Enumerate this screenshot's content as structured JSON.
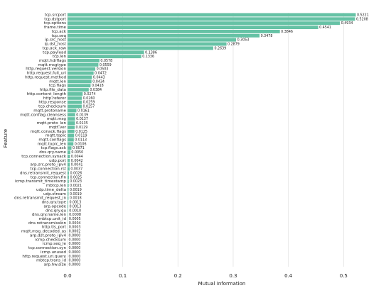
{
  "chart_data": {
    "type": "barh",
    "x_label": "Mutual Information",
    "y_label": "Feature",
    "color": "#66c2a5",
    "grid": true,
    "xlim": [
      0,
      0.573
    ],
    "xticks": [
      {
        "value": 0,
        "label": "0.0"
      },
      0.1,
      0.2,
      0.3,
      0.4,
      0.5
    ],
    "categories": [
      "tcp.srcport",
      "tcp.dstport",
      "tcp.options",
      "frame.time",
      "tcp.ack",
      "tcp.seq",
      "ip.src_host",
      "ip.dst_host",
      "tcp.ack_raw",
      "tcp.payload",
      "tcp.len",
      "mqtt.hdrflags",
      "mqtt.msgtype",
      "http.request.version",
      "http.request.full_uri",
      "http.request.method",
      "mqtt.len",
      "tcp.flags",
      "http.file_data",
      "http.content_length",
      "http.referer",
      "http.response",
      "tcp.checksum",
      "mqtt.protoname",
      "mqtt.conflag.cleansess",
      "mqtt.msg",
      "mqtt.proto_len",
      "mqtt.ver",
      "mqtt.conack.flags",
      "mqtt.topic",
      "mqtt.conflags",
      "mqtt.topic_len",
      "tcp.flags.ack",
      "dns.qry.name",
      "tcp.connection.synack",
      "udp.port",
      "arp.src.proto_ipv4",
      "tcp.connection.rst",
      "dns.retransmit_request",
      "tcp.connection.fin",
      "icmp.transmit_timestamp",
      "mbtcp.len",
      "udp.time_delta",
      "udp.stream",
      "dns.retransmit_request_in",
      "dns.qry.type",
      "arp.opcode",
      "dns.qry.qu",
      "dns.qry.name.len",
      "mbtcp.unit_id",
      "dns.retransmission",
      "http.tls_port",
      "mqtt.msg_decoded_as",
      "arp.dst.proto_ipv4",
      "icmp.checksum",
      "icmp.seq_le",
      "tcp.connection.syn",
      "icmp.unused",
      "http.request.uri.query",
      "mbtcp.trans_id",
      "arp.hw.size"
    ],
    "values": [
      0.5221,
      0.5208,
      0.4934,
      0.4541,
      0.3846,
      0.3478,
      0.3053,
      0.2879,
      0.2639,
      0.1386,
      0.1336,
      0.0578,
      0.0559,
      0.0503,
      0.0472,
      0.0443,
      0.0434,
      0.0418,
      0.0384,
      0.0274,
      0.026,
      0.0259,
      0.0257,
      0.0161,
      0.0139,
      0.0137,
      0.0135,
      0.0129,
      0.0125,
      0.0119,
      0.0113,
      0.0106,
      0.0071,
      0.005,
      0.0044,
      0.0042,
      0.0041,
      0.0037,
      0.0026,
      0.0025,
      0.0023,
      0.0021,
      0.0019,
      0.0019,
      0.0018,
      0.0013,
      0.0013,
      0.001,
      0.0008,
      0.0005,
      0.0004,
      0.0003,
      0.0002,
      0,
      0,
      0,
      0,
      0,
      0,
      0,
      0
    ],
    "value_labels": [
      "0.5221",
      "0.5208",
      "0.4934",
      "0.4541",
      "0.3846",
      "0.3478",
      "0.3053",
      "0.2879",
      "0.2639",
      "0.1386",
      "0.1336",
      "0.0578",
      "0.0559",
      "0.0503",
      "0.0472",
      "0.0443",
      "0.0434",
      "0.0418",
      "0.0384",
      "0.0274",
      "0.0260",
      "0.0259",
      "0.0257",
      "0.0161",
      "0.0139",
      "0.0137",
      "0.0135",
      "0.0129",
      "0.0125",
      "0.0119",
      "0.0113",
      "0.0106",
      "0.0071",
      "0.0050",
      "0.0044",
      "0.0042",
      "0.0041",
      "0.0037",
      "0.0026",
      "0.0025",
      "0.0023",
      "0.0021",
      "0.0019",
      "0.0019",
      "0.0018",
      "0.0013",
      "0.0013",
      "0.0010",
      "0.0008",
      "0.0005",
      "0.0004",
      "0.0003",
      "0.0002",
      "0.0000",
      "0.0000",
      "0.0000",
      "0.0000",
      "0.0000",
      "0.0000",
      "0.0000",
      "0.0000"
    ]
  }
}
